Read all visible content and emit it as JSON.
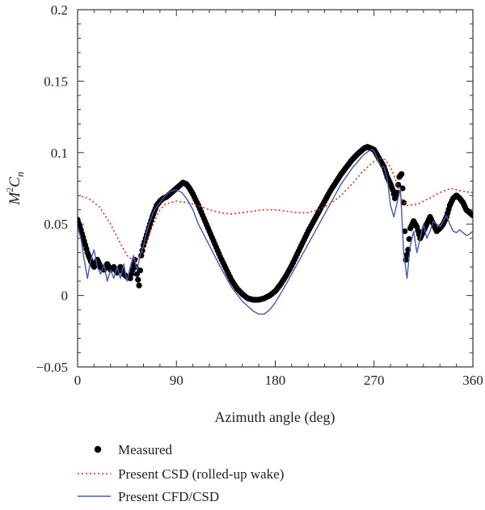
{
  "chart_data": {
    "type": "line",
    "xlabel": "Azimuth angle (deg)",
    "ylabel_base": "M",
    "ylabel_sup": "2",
    "ylabel_var": "C",
    "ylabel_sub": "n",
    "xlim": [
      0,
      360
    ],
    "ylim": [
      -0.05,
      0.2
    ],
    "xticks": [
      0,
      90,
      180,
      270,
      360
    ],
    "yticks": [
      -0.05,
      0,
      0.05,
      0.1,
      0.15,
      0.2
    ],
    "ytick_labels": [
      "−0.05",
      "0",
      "0.05",
      "0.1",
      "0.15",
      "0.2"
    ],
    "legend_position": "bottom-left",
    "grid": false,
    "series": [
      {
        "name": "Measured",
        "style": "markers",
        "color": "#000000",
        "x": [
          0,
          3,
          6,
          9,
          12,
          15,
          18,
          21,
          24,
          27,
          30,
          33,
          36,
          39,
          42,
          45,
          48,
          50,
          52,
          54,
          56,
          58,
          60,
          62,
          64,
          66,
          68,
          70,
          72,
          75,
          78,
          81,
          84,
          87,
          90,
          93,
          96,
          99,
          102,
          105,
          110,
          115,
          120,
          125,
          130,
          135,
          140,
          145,
          150,
          155,
          160,
          165,
          170,
          175,
          180,
          185,
          190,
          195,
          200,
          205,
          210,
          215,
          220,
          225,
          230,
          235,
          240,
          245,
          250,
          255,
          258,
          261,
          264,
          267,
          270,
          273,
          276,
          279,
          282,
          285,
          287,
          289,
          291,
          293,
          295,
          297,
          299,
          301,
          303,
          306,
          309,
          312,
          315,
          318,
          321,
          324,
          327,
          330,
          333,
          336,
          339,
          342,
          345,
          348,
          351,
          354,
          357,
          360
        ],
        "y": [
          0.053,
          0.046,
          0.038,
          0.03,
          0.024,
          0.02,
          0.025,
          0.02,
          0.018,
          0.022,
          0.018,
          0.02,
          0.016,
          0.02,
          0.015,
          0.013,
          0.012,
          0.018,
          0.025,
          0.015,
          0.007,
          0.028,
          0.035,
          0.04,
          0.045,
          0.05,
          0.055,
          0.059,
          0.063,
          0.066,
          0.068,
          0.069,
          0.071,
          0.073,
          0.075,
          0.077,
          0.079,
          0.078,
          0.075,
          0.071,
          0.063,
          0.054,
          0.045,
          0.036,
          0.027,
          0.019,
          0.011,
          0.005,
          0.001,
          -0.002,
          -0.003,
          -0.003,
          -0.002,
          0.0,
          0.003,
          0.008,
          0.014,
          0.021,
          0.029,
          0.037,
          0.045,
          0.052,
          0.059,
          0.066,
          0.073,
          0.079,
          0.085,
          0.09,
          0.095,
          0.099,
          0.101,
          0.103,
          0.104,
          0.103,
          0.102,
          0.098,
          0.094,
          0.09,
          0.083,
          0.078,
          0.074,
          0.068,
          0.072,
          0.083,
          0.085,
          0.065,
          0.025,
          0.032,
          0.047,
          0.052,
          0.048,
          0.04,
          0.045,
          0.05,
          0.055,
          0.05,
          0.045,
          0.047,
          0.05,
          0.055,
          0.063,
          0.068,
          0.07,
          0.068,
          0.065,
          0.06,
          0.058,
          0.056
        ]
      },
      {
        "name": "Present CSD (rolled-up wake)",
        "style": "dotted",
        "color": "#e0291f",
        "x": [
          0,
          10,
          20,
          30,
          40,
          45,
          50,
          55,
          60,
          65,
          70,
          75,
          80,
          90,
          100,
          110,
          120,
          130,
          140,
          150,
          160,
          170,
          180,
          190,
          200,
          210,
          220,
          230,
          240,
          250,
          260,
          270,
          275,
          280,
          285,
          290,
          295,
          300,
          310,
          320,
          330,
          340,
          350,
          360
        ],
        "y": [
          0.07,
          0.068,
          0.062,
          0.05,
          0.035,
          0.028,
          0.025,
          0.026,
          0.032,
          0.042,
          0.052,
          0.06,
          0.064,
          0.066,
          0.065,
          0.063,
          0.06,
          0.058,
          0.057,
          0.058,
          0.059,
          0.06,
          0.06,
          0.059,
          0.058,
          0.058,
          0.06,
          0.064,
          0.07,
          0.078,
          0.087,
          0.094,
          0.096,
          0.095,
          0.09,
          0.08,
          0.068,
          0.063,
          0.064,
          0.068,
          0.072,
          0.075,
          0.073,
          0.072
        ]
      },
      {
        "name": "Present CFD/CSD",
        "style": "solid",
        "color": "#4659a8",
        "x": [
          0,
          3,
          6,
          9,
          12,
          15,
          18,
          21,
          24,
          27,
          30,
          33,
          36,
          39,
          42,
          45,
          48,
          51,
          54,
          57,
          60,
          63,
          66,
          70,
          75,
          80,
          85,
          90,
          95,
          100,
          105,
          110,
          120,
          130,
          140,
          150,
          160,
          165,
          170,
          175,
          180,
          190,
          200,
          210,
          220,
          230,
          240,
          250,
          260,
          265,
          268,
          270,
          273,
          276,
          279,
          282,
          285,
          288,
          291,
          294,
          297,
          300,
          303,
          306,
          309,
          312,
          315,
          318,
          321,
          324,
          327,
          330,
          333,
          336,
          339,
          342,
          345,
          348,
          351,
          354,
          357,
          360
        ],
        "y": [
          0.048,
          0.04,
          0.025,
          0.012,
          0.025,
          0.032,
          0.02,
          0.015,
          0.022,
          0.01,
          0.018,
          0.012,
          0.02,
          0.012,
          0.022,
          0.01,
          0.02,
          0.028,
          0.018,
          0.028,
          0.035,
          0.045,
          0.052,
          0.06,
          0.065,
          0.07,
          0.073,
          0.074,
          0.072,
          0.067,
          0.06,
          0.05,
          0.035,
          0.02,
          0.006,
          -0.004,
          -0.011,
          -0.013,
          -0.013,
          -0.01,
          -0.005,
          0.008,
          0.022,
          0.036,
          0.05,
          0.064,
          0.078,
          0.089,
          0.098,
          0.101,
          0.102,
          0.101,
          0.096,
          0.09,
          0.09,
          0.082,
          0.063,
          0.055,
          0.065,
          0.075,
          0.03,
          0.012,
          0.035,
          0.045,
          0.03,
          0.04,
          0.05,
          0.04,
          0.045,
          0.052,
          0.05,
          0.048,
          0.052,
          0.056,
          0.05,
          0.045,
          0.044,
          0.046,
          0.044,
          0.042,
          0.043,
          0.045
        ]
      }
    ]
  }
}
